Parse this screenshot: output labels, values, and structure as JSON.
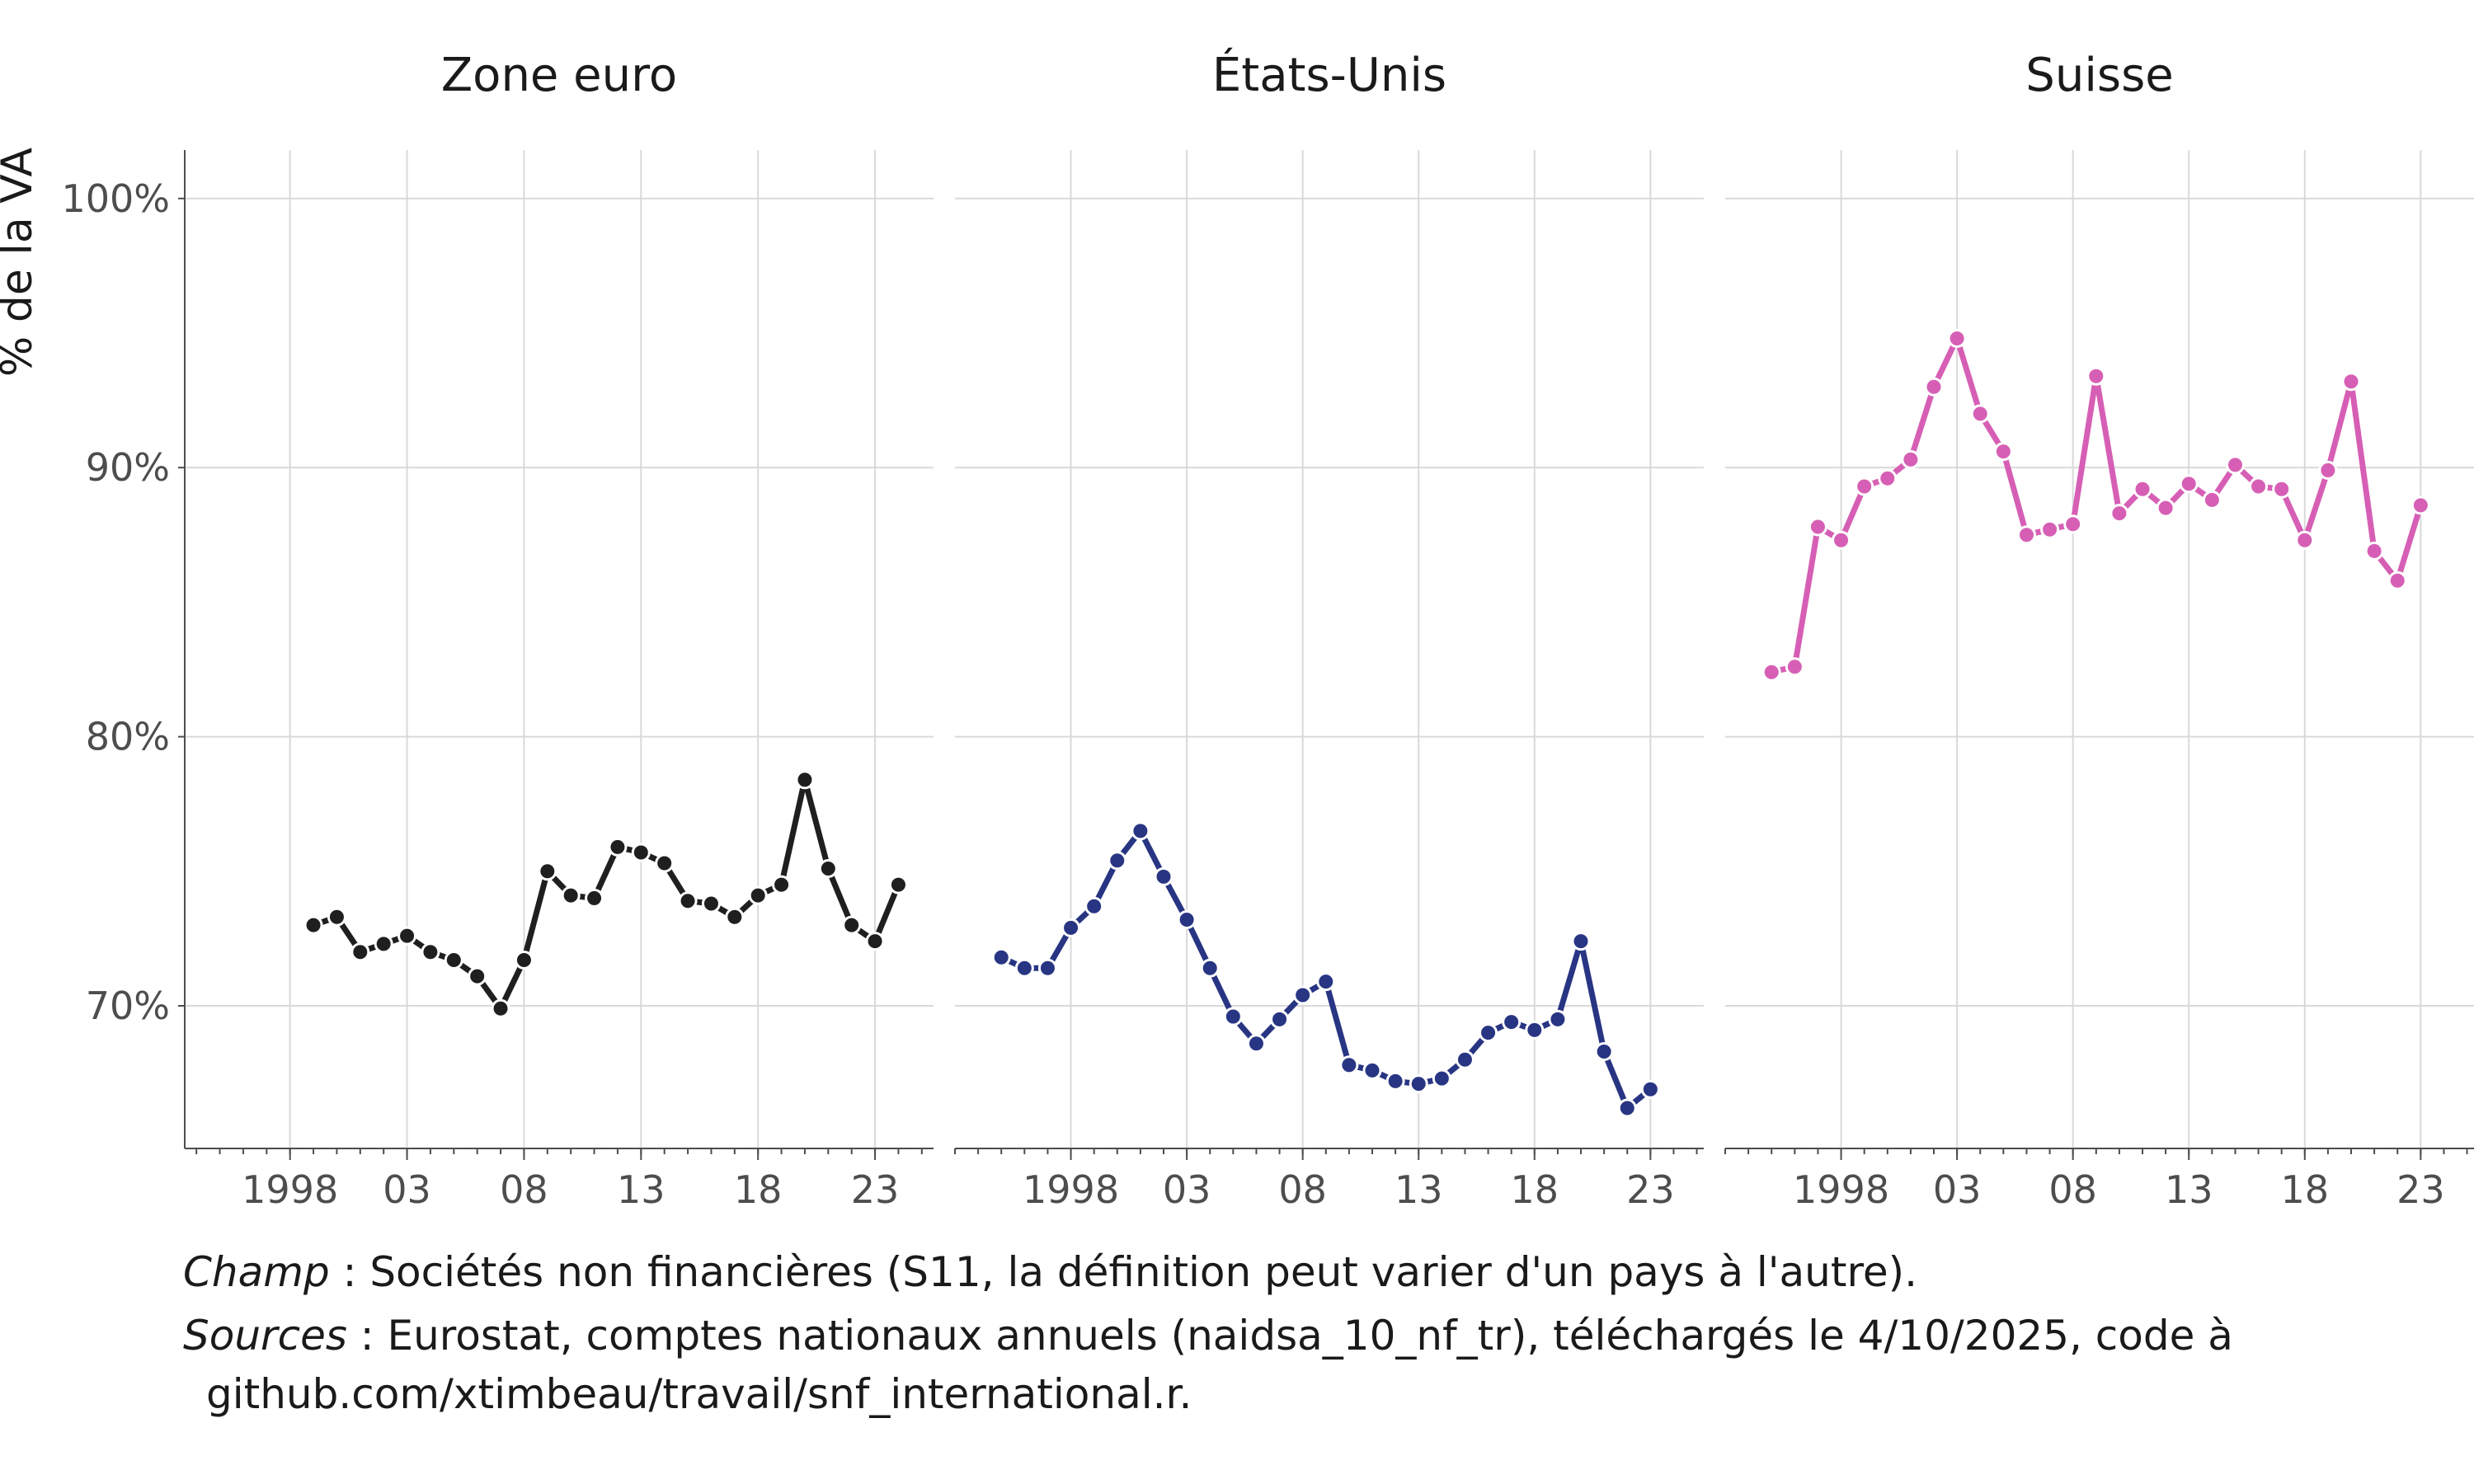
{
  "chart_data": {
    "type": "line",
    "ylabel": "% de la VA",
    "ylim": [
      64.7,
      101.8
    ],
    "yticks": [
      70,
      80,
      90,
      100
    ],
    "ytick_labels": [
      "70%",
      "80%",
      "90%",
      "100%"
    ],
    "xtick_values": [
      1998,
      2003,
      2008,
      2013,
      2018,
      2023
    ],
    "xtick_labels": [
      "1998",
      "03",
      "08",
      "13",
      "18",
      "23"
    ],
    "grid": true,
    "legend": "none",
    "facets": [
      {
        "title": "Zone euro",
        "color": "#1f1f1f",
        "xlim": [
          1993.5,
          2025.5
        ],
        "x": [
          1999,
          2000,
          2001,
          2002,
          2003,
          2004,
          2005,
          2006,
          2007,
          2008,
          2009,
          2010,
          2011,
          2012,
          2013,
          2014,
          2015,
          2016,
          2017,
          2018,
          2019,
          2020,
          2021,
          2022,
          2023,
          2024
        ],
        "values": [
          73.0,
          73.3,
          72.0,
          72.3,
          72.6,
          72.0,
          71.7,
          71.1,
          69.9,
          71.7,
          75.0,
          74.1,
          74.0,
          75.9,
          75.7,
          75.3,
          73.9,
          73.8,
          73.3,
          74.1,
          74.5,
          78.4,
          75.1,
          73.0,
          72.4,
          74.5
        ]
      },
      {
        "title": "États-Unis",
        "color": "#283583",
        "xlim": [
          1993.0,
          2025.3
        ],
        "x": [
          1995,
          1996,
          1997,
          1998,
          1999,
          2000,
          2001,
          2002,
          2003,
          2004,
          2005,
          2006,
          2007,
          2008,
          2009,
          2010,
          2011,
          2012,
          2013,
          2014,
          2015,
          2016,
          2017,
          2018,
          2019,
          2020,
          2021,
          2022,
          2023
        ],
        "values": [
          71.8,
          71.4,
          71.4,
          72.9,
          73.7,
          75.4,
          76.5,
          74.8,
          73.2,
          71.4,
          69.6,
          68.6,
          69.5,
          70.4,
          70.9,
          67.8,
          67.6,
          67.2,
          67.1,
          67.3,
          68.0,
          69.0,
          69.4,
          69.1,
          69.5,
          72.4,
          68.3,
          66.2,
          66.9
        ]
      },
      {
        "title": "Suisse",
        "color": "#d65fb5",
        "xlim": [
          1993.0,
          2025.3
        ],
        "x": [
          1995,
          1996,
          1997,
          1998,
          1999,
          2000,
          2001,
          2002,
          2003,
          2004,
          2005,
          2006,
          2007,
          2008,
          2009,
          2010,
          2011,
          2012,
          2013,
          2014,
          2015,
          2016,
          2017,
          2018,
          2019,
          2020,
          2021,
          2022,
          2023
        ],
        "values": [
          82.4,
          82.6,
          87.8,
          87.3,
          89.3,
          89.6,
          90.3,
          93.0,
          94.8,
          92.0,
          90.6,
          87.5,
          87.7,
          87.9,
          93.4,
          88.3,
          89.2,
          88.5,
          89.4,
          88.8,
          90.1,
          89.3,
          89.2,
          87.3,
          89.9,
          93.2,
          86.9,
          85.8,
          88.6
        ]
      }
    ]
  },
  "caption": {
    "line1_label": "Champ",
    "line1_text": " : Sociétés non financières (S11, la définition peut varier d'un pays à l'autre).",
    "line2_label": "Sources",
    "line2_text": " : Eurostat, comptes nationaux annuels (naidsa_10_nf_tr), téléchargés le 4/10/2025, code à",
    "line3_text": "github.com/xtimbeau/travail/snf_international.r."
  }
}
